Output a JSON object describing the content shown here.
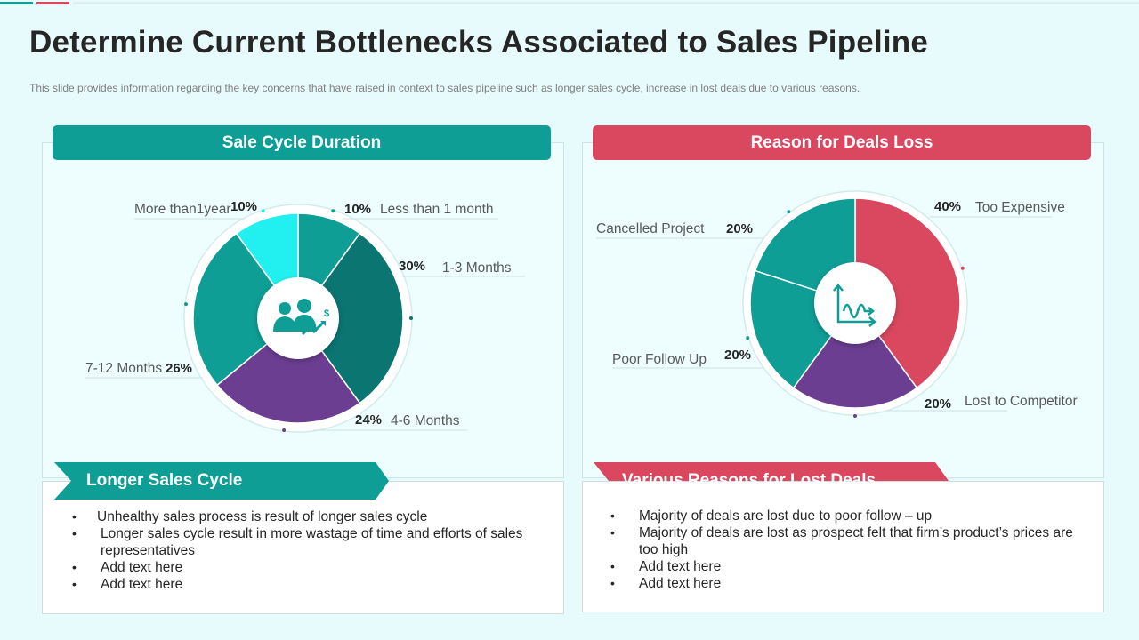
{
  "page": {
    "title": "Determine Current Bottlenecks Associated to Sales Pipeline",
    "subtitle": "This slide provides  information  regarding  the key concerns that have  raised  in context to sales pipeline  such as longer sales cycle, increase in lost deals due to various  reasons."
  },
  "colors": {
    "teal": "#0e9e96",
    "dark_teal": "#0b7571",
    "purple": "#6b3e91",
    "cyan": "#22f0f0",
    "crimson": "#d9485f"
  },
  "left_panel": {
    "header": "Sale Cycle Duration",
    "center_icon": "business-people-dollar-growth-icon",
    "banner": "Longer Sales Cycle",
    "bullets": [
      "Unhealthy  sales process is result  of longer sales cycle",
      "Longer sales cycle result  in more wastage of time and efforts of sales representatives",
      "Add text here",
      "Add text here"
    ]
  },
  "right_panel": {
    "header": "Reason for Deals Loss",
    "center_icon": "process-flow-chart-icon",
    "banner": "Various Reasons for Lost Deals",
    "bullets": [
      "Majority of deals are lost due to poor follow – up",
      "Majority of deals are lost as prospect felt that firm’s product’s prices are too high",
      "Add text here",
      "Add text here"
    ]
  },
  "chart_data": [
    {
      "type": "pie",
      "title": "Sale Cycle Duration",
      "categories": [
        "Less than  1 month",
        "1-3 Months",
        "4-6 Months",
        "7-12 Months",
        "More than1year"
      ],
      "values": [
        10,
        30,
        24,
        26,
        10
      ],
      "value_labels": [
        "10%",
        "30%",
        "24%",
        "26%",
        "10%"
      ],
      "colors": [
        "#0e9e96",
        "#0b7571",
        "#6b3e91",
        "#0e9e96",
        "#22f0f0"
      ]
    },
    {
      "type": "pie",
      "title": "Reason for Deals Loss",
      "categories": [
        "Too Expensive",
        "Lost to Competitor",
        "Poor Follow Up",
        "Cancelled Project"
      ],
      "values": [
        40,
        20,
        20,
        20
      ],
      "value_labels": [
        "40%",
        "20%",
        "20%",
        "20%"
      ],
      "colors": [
        "#d9485f",
        "#6b3e91",
        "#0e9e96",
        "#0e9e96"
      ]
    }
  ]
}
